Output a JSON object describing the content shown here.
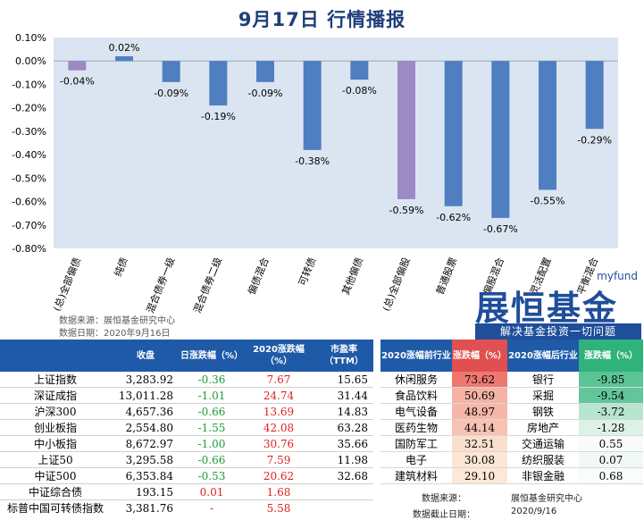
{
  "title": "9月17日  行情播报",
  "chart_data": {
    "type": "bar",
    "categories": [
      "(总)全部偏债",
      "纯债",
      "混合债券一级",
      "混合债券二级",
      "偏债混合",
      "可转债",
      "其他偏债",
      "(总)全部偏股",
      "普通股票",
      "偏股混合",
      "灵活配置",
      "平衡混合"
    ],
    "values": [
      -0.04,
      0.02,
      -0.09,
      -0.19,
      -0.09,
      -0.38,
      -0.08,
      -0.59,
      -0.62,
      -0.67,
      -0.55,
      -0.29
    ],
    "data_labels": [
      "-0.04%",
      "0.02%",
      "-0.09%",
      "-0.19%",
      "-0.09%",
      "-0.38%",
      "-0.08%",
      "-0.59%",
      "-0.62%",
      "-0.67%",
      "-0.55%",
      "-0.29%"
    ],
    "ylim": [
      -0.8,
      0.1
    ],
    "yticks": [
      0.1,
      0.0,
      -0.1,
      -0.2,
      -0.3,
      -0.4,
      -0.5,
      -0.6,
      -0.7,
      -0.8
    ],
    "ytick_labels": [
      "0.10%",
      "0.00%",
      "-0.10%",
      "-0.20%",
      "-0.30%",
      "-0.40%",
      "-0.50%",
      "-0.60%",
      "-0.70%",
      "-0.80%"
    ],
    "highlight_indices": [
      0,
      7
    ],
    "colors": {
      "bar": "#4f7fc1",
      "highlight": "#9c8ac4",
      "plot_bg": "#dbe5f1"
    }
  },
  "source": {
    "line1": "数据来源：展恒基金研究中心",
    "line2": "数据日期：2020年9月16日"
  },
  "logo": {
    "small": "myfund",
    "main": "展恒基金",
    "slogan": "解决基金投资一切问题"
  },
  "index_table": {
    "headers": [
      "",
      "收盘",
      "日涨跌幅（%）",
      "2020涨跌幅（%）",
      "市盈率（TTM）"
    ],
    "rows": [
      {
        "name": "上证指数",
        "close": "3,283.92",
        "day": "-0.36",
        "ytd": "7.67",
        "pe": "15.65"
      },
      {
        "name": "深证成指",
        "close": "13,011.28",
        "day": "-1.01",
        "ytd": "24.74",
        "pe": "31.44"
      },
      {
        "name": "沪深300",
        "close": "4,657.36",
        "day": "-0.66",
        "ytd": "13.69",
        "pe": "14.83"
      },
      {
        "name": "创业板指",
        "close": "2,554.80",
        "day": "-1.55",
        "ytd": "42.08",
        "pe": "63.28"
      },
      {
        "name": "中小板指",
        "close": "8,672.97",
        "day": "-1.00",
        "ytd": "30.76",
        "pe": "35.66"
      },
      {
        "name": "上证50",
        "close": "3,295.58",
        "day": "-0.66",
        "ytd": "7.59",
        "pe": "11.98"
      },
      {
        "name": "中证500",
        "close": "6,353.84",
        "day": "-0.53",
        "ytd": "20.62",
        "pe": "32.68"
      },
      {
        "name": "中证综合债",
        "close": "193.15",
        "day": "0.01",
        "ytd": "1.68",
        "pe": ""
      },
      {
        "name": "标普中国可转债指数",
        "close": "3,381.76",
        "day": "-",
        "ytd": "5.58",
        "pe": ""
      }
    ]
  },
  "industry_table": {
    "headers": [
      "2020涨幅前行业",
      "涨跌幅（%）",
      "2020涨幅后行业",
      "涨跌幅（%）"
    ],
    "rows": [
      {
        "top": "休闲服务",
        "top_val": "73.62",
        "bot": "银行",
        "bot_val": "-9.85"
      },
      {
        "top": "食品饮料",
        "top_val": "50.69",
        "bot": "采掘",
        "bot_val": "-9.54"
      },
      {
        "top": "电气设备",
        "top_val": "48.97",
        "bot": "钢铁",
        "bot_val": "-3.72"
      },
      {
        "top": "医药生物",
        "top_val": "44.14",
        "bot": "房地产",
        "bot_val": "-1.28"
      },
      {
        "top": "国防军工",
        "top_val": "32.51",
        "bot": "交通运输",
        "bot_val": "0.55"
      },
      {
        "top": "电子",
        "top_val": "30.08",
        "bot": "纺织服装",
        "bot_val": "0.07"
      },
      {
        "top": "建筑材料",
        "top_val": "29.10",
        "bot": "非银金融",
        "bot_val": "0.68"
      }
    ],
    "footer_label1": "数据来源：",
    "footer_value1": "展恒基金研究中心",
    "footer_label2": "数据截止日期：",
    "footer_value2": "2020/9/16"
  }
}
